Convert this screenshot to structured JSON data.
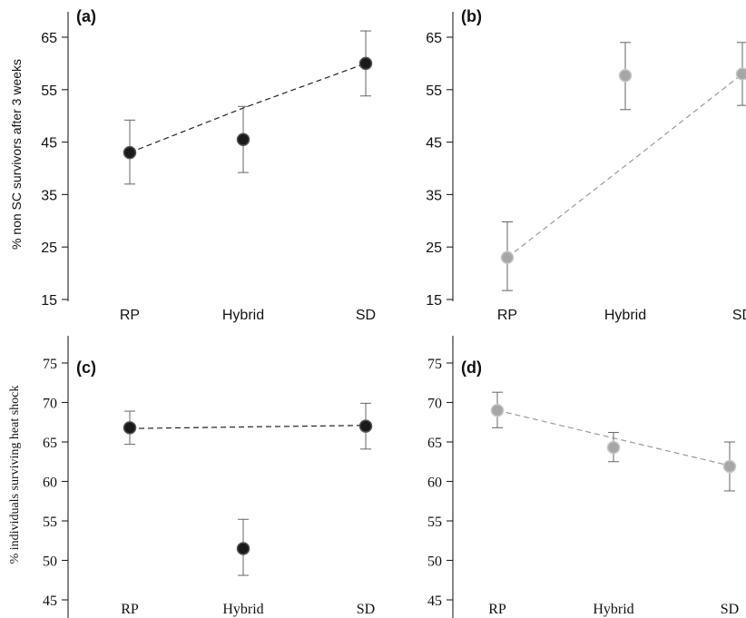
{
  "colors": {
    "black_series": "#1a1a1a",
    "grey_series": "#a6a6a6",
    "axis": "#222222"
  },
  "chart_data": [
    {
      "id": "a",
      "type": "line",
      "label": "(a)",
      "ylabel": "% non SC survivors after 3 weeks",
      "categories": [
        "RP",
        "Hybrid",
        "SD"
      ],
      "ylim": [
        15,
        68
      ],
      "yticks": [
        15,
        25,
        35,
        45,
        55,
        65
      ],
      "series": [
        {
          "values": [
            43,
            45.5,
            60
          ],
          "err_low": [
            37,
            39.2,
            53.8
          ],
          "err_high": [
            49.2,
            51.8,
            66.2
          ],
          "color": "#1a1a1a",
          "fit": [
            43,
            51.5,
            60
          ]
        }
      ],
      "grid": false
    },
    {
      "id": "b",
      "type": "line",
      "label": "(b)",
      "ylabel": "",
      "categories": [
        "RP",
        "Hybrid",
        "SD"
      ],
      "ylim": [
        15,
        68
      ],
      "yticks": [
        15,
        25,
        35,
        45,
        55,
        65
      ],
      "series": [
        {
          "values": [
            23,
            57.7,
            58
          ],
          "err_low": [
            16.7,
            51.2,
            52
          ],
          "err_high": [
            29.8,
            64,
            64
          ],
          "color": "#a6a6a6",
          "fit": [
            23,
            40.5,
            58
          ]
        }
      ],
      "grid": false
    },
    {
      "id": "c",
      "type": "line",
      "label": "(c)",
      "ylabel": "% individuals surviving heat shock",
      "categories": [
        "RP",
        "Hybrid",
        "SD"
      ],
      "ylim": [
        45,
        75
      ],
      "yticks": [
        45,
        50,
        55,
        60,
        65,
        70,
        75
      ],
      "series": [
        {
          "values": [
            66.8,
            51.5,
            67
          ],
          "err_low": [
            64.7,
            48.1,
            64.1
          ],
          "err_high": [
            68.9,
            55.2,
            69.9
          ],
          "color": "#1a1a1a",
          "fit": [
            66.7,
            66.9,
            67.1
          ]
        }
      ],
      "grid": false
    },
    {
      "id": "d",
      "type": "line",
      "label": "(d)",
      "ylabel": "",
      "categories": [
        "RP",
        "Hybrid",
        "SD"
      ],
      "ylim": [
        45,
        75
      ],
      "yticks": [
        45,
        50,
        55,
        60,
        65,
        70,
        75
      ],
      "series": [
        {
          "values": [
            69,
            64.3,
            61.9
          ],
          "err_low": [
            66.8,
            62.5,
            58.8
          ],
          "err_high": [
            71.3,
            66.2,
            65
          ],
          "color": "#a6a6a6",
          "fit": [
            69,
            65.5,
            62
          ]
        }
      ],
      "grid": false
    }
  ]
}
